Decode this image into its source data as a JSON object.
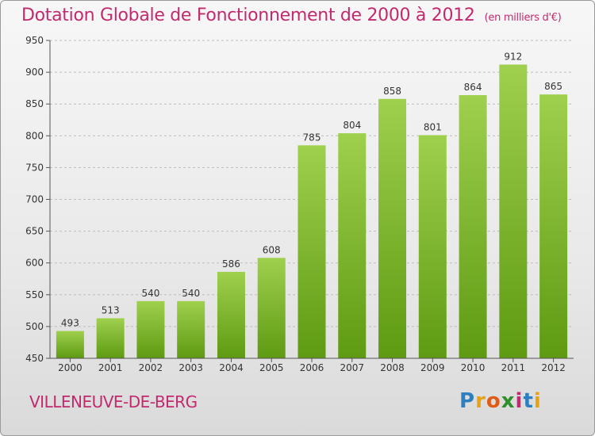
{
  "header": {
    "title": "Dotation Globale de Fonctionnement de 2000 à 2012",
    "subtitle": "(en milliers d'€)"
  },
  "footer": {
    "commune": "VILLENEUVE-DE-BERG",
    "logo_letters": [
      "P",
      "r",
      "o",
      "x",
      "i",
      "t",
      "i"
    ]
  },
  "colors": {
    "title": "#c22a6e",
    "bar_top": "#9fd04e",
    "bar_bottom": "#5e9a12",
    "logo": [
      "#2e7fc1",
      "#e8a215",
      "#e05b17",
      "#2f8f2a",
      "#c22a6e",
      "#2e7fc1",
      "#e8a215"
    ]
  },
  "chart_data": {
    "type": "bar",
    "categories": [
      "2000",
      "2001",
      "2002",
      "2003",
      "2004",
      "2005",
      "2006",
      "2007",
      "2008",
      "2009",
      "2010",
      "2011",
      "2012"
    ],
    "values": [
      493,
      513,
      540,
      540,
      586,
      608,
      785,
      804,
      858,
      801,
      864,
      912,
      865
    ],
    "ylim": [
      450,
      950
    ],
    "yticks": [
      450,
      500,
      550,
      600,
      650,
      700,
      750,
      800,
      850,
      900,
      950
    ],
    "grid": true,
    "data_labels": true
  }
}
